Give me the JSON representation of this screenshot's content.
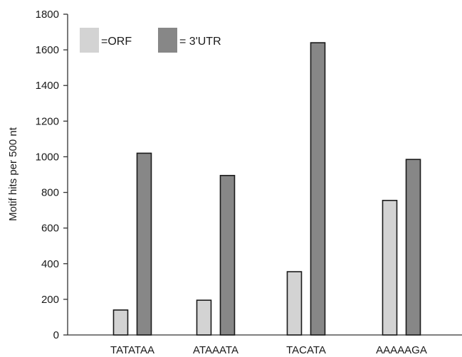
{
  "chart_data": {
    "type": "bar",
    "title": "",
    "xlabel": "",
    "ylabel": "Motif hits per 500 nt",
    "ylim": [
      0,
      1800
    ],
    "yticks": [
      0,
      200,
      400,
      600,
      800,
      1000,
      1200,
      1400,
      1600,
      1800
    ],
    "categories": [
      "TATATAA",
      "ATAAATA",
      "TACATA",
      "AAAAAGA"
    ],
    "series": [
      {
        "name": "=ORF",
        "values": [
          140,
          195,
          355,
          755
        ],
        "color": "#d3d3d3"
      },
      {
        "name": "= 3'UTR",
        "values": [
          1020,
          895,
          1640,
          985
        ],
        "color": "#878787"
      }
    ],
    "grid": false,
    "legend_position": "top-left"
  }
}
